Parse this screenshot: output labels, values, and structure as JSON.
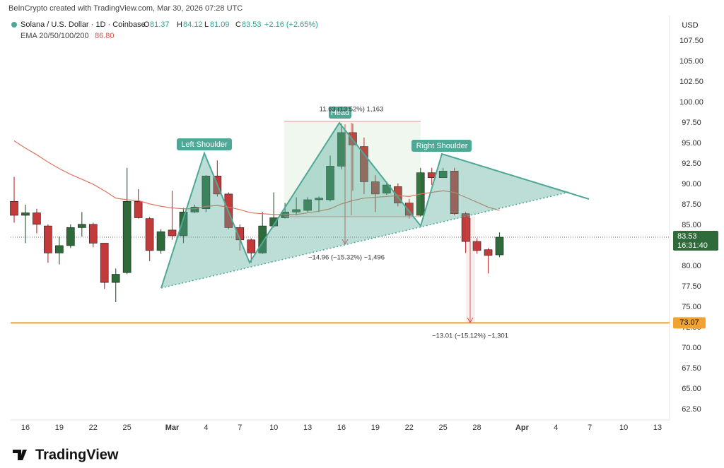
{
  "chart_data": {
    "type": "candlestick",
    "header": "BeInCrypto created with TradingView.com, Mar 30, 2026 07:28 UTC",
    "title": "Solana / U.S. Dollar · 1D · Coinbase",
    "ohlc_labels": [
      "O",
      "H",
      "L",
      "C"
    ],
    "change": "+2.16 (+2.65%)",
    "currency": "USD",
    "countdown": "16:31:40",
    "brand": "TradingView",
    "x": [
      "2026-02-15",
      "2026-02-16",
      "2026-02-17",
      "2026-02-18",
      "2026-02-19",
      "2026-02-20",
      "2026-02-21",
      "2026-02-22",
      "2026-02-23",
      "2026-02-24",
      "2026-02-25",
      "2026-02-26",
      "2026-02-27",
      "2026-02-28",
      "2026-03-01",
      "2026-03-02",
      "2026-03-03",
      "2026-03-04",
      "2026-03-05",
      "2026-03-06",
      "2026-03-07",
      "2026-03-08",
      "2026-03-09",
      "2026-03-10",
      "2026-03-11",
      "2026-03-12",
      "2026-03-13",
      "2026-03-14",
      "2026-03-15",
      "2026-03-16",
      "2026-03-17",
      "2026-03-18",
      "2026-03-19",
      "2026-03-20",
      "2026-03-21",
      "2026-03-22",
      "2026-03-23",
      "2026-03-24",
      "2026-03-25",
      "2026-03-26",
      "2026-03-27",
      "2026-03-28",
      "2026-03-29",
      "2026-03-30"
    ],
    "series": [
      {
        "up_color": "#2f6b3a",
        "down_color": "#c33a3a",
        "open": [
          87.9,
          86.2,
          86.5,
          84.9,
          81.6,
          82.5,
          84.7,
          85.1,
          82.8,
          78.0,
          79.2,
          87.9,
          85.8,
          81.9,
          84.4,
          83.7,
          86.6,
          87.0,
          91.0,
          88.8,
          84.7,
          83.2,
          81.6,
          84.9,
          85.9,
          86.6,
          86.8,
          88.1,
          88.1,
          92.2,
          96.3,
          94.6,
          90.3,
          88.9,
          89.7,
          87.7,
          86.2,
          91.4,
          90.8,
          91.6,
          86.4,
          83.0,
          82.0,
          81.37
        ],
        "high": [
          90.9,
          87.5,
          87.0,
          85.1,
          83.6,
          85.1,
          86.6,
          85.3,
          82.8,
          79.7,
          92.0,
          89.4,
          86.0,
          84.5,
          89.2,
          87.1,
          87.5,
          91.1,
          92.9,
          89.0,
          85.1,
          83.4,
          86.6,
          89.0,
          87.7,
          88.4,
          88.4,
          88.5,
          93.5,
          97.4,
          97.4,
          95.7,
          91.1,
          90.3,
          90.1,
          88.2,
          92.0,
          92.0,
          92.0,
          92.0,
          86.6,
          83.4,
          82.2,
          84.12
        ],
        "low": [
          85.3,
          82.8,
          84.0,
          80.4,
          80.2,
          82.2,
          83.6,
          82.3,
          77.2,
          75.6,
          79.0,
          85.8,
          80.6,
          81.5,
          83.2,
          82.8,
          86.5,
          86.6,
          88.5,
          84.5,
          81.9,
          80.4,
          81.5,
          84.7,
          85.8,
          86.2,
          86.6,
          86.6,
          87.9,
          91.8,
          89.2,
          88.8,
          86.6,
          88.7,
          87.3,
          85.8,
          86.0,
          89.9,
          90.8,
          86.2,
          81.6,
          81.5,
          79.1,
          81.09
        ],
        "close": [
          86.2,
          86.5,
          85.1,
          81.6,
          82.5,
          84.7,
          85.1,
          82.8,
          78.0,
          79.0,
          87.9,
          85.9,
          81.9,
          84.2,
          83.7,
          86.6,
          87.2,
          91.0,
          88.8,
          84.7,
          83.2,
          81.6,
          84.9,
          85.9,
          86.6,
          86.9,
          88.1,
          88.3,
          92.2,
          96.3,
          94.8,
          90.3,
          88.8,
          89.9,
          87.7,
          86.2,
          91.4,
          90.8,
          91.6,
          86.4,
          83.0,
          81.9,
          81.3,
          83.53
        ]
      },
      {
        "name": "EMA 20/50/100/200",
        "color": "#e0735e",
        "last_value_label": "86.80",
        "values": [
          95.3,
          94.4,
          93.6,
          92.7,
          91.9,
          91.2,
          90.6,
          90.0,
          89.2,
          88.3,
          88.1,
          88.0,
          87.6,
          87.3,
          87.1,
          87.0,
          87.0,
          87.3,
          87.4,
          87.2,
          86.9,
          86.5,
          86.4,
          86.3,
          86.3,
          86.3,
          86.5,
          86.7,
          87.0,
          87.6,
          88.0,
          88.3,
          88.4,
          88.5,
          88.6,
          88.5,
          88.8,
          89.0,
          89.2,
          89.0,
          88.4,
          87.8,
          87.2,
          86.8
        ]
      }
    ],
    "hline": 73.07,
    "hline_color": "#f0a330",
    "annotations": [
      "Left Shoulder",
      "Head",
      "Right Shoulder",
      "11.63 (13.52%) 1,163",
      "−14.96 (−15.32%) −1,496",
      "−13.01 (−15.12%) −1,301"
    ],
    "xlim": [
      "2026-02-15",
      "2026-04-13"
    ],
    "xticks": [
      {
        "value": "2026-02-16",
        "label": "16"
      },
      {
        "value": "2026-02-19",
        "label": "19"
      },
      {
        "value": "2026-02-22",
        "label": "22"
      },
      {
        "value": "2026-02-25",
        "label": "25"
      },
      {
        "value": "2026-03-01",
        "label": "Mar"
      },
      {
        "value": "2026-03-04",
        "label": "4"
      },
      {
        "value": "2026-03-07",
        "label": "7"
      },
      {
        "value": "2026-03-10",
        "label": "10"
      },
      {
        "value": "2026-03-13",
        "label": "13"
      },
      {
        "value": "2026-03-16",
        "label": "16"
      },
      {
        "value": "2026-03-19",
        "label": "19"
      },
      {
        "value": "2026-03-22",
        "label": "22"
      },
      {
        "value": "2026-03-25",
        "label": "25"
      },
      {
        "value": "2026-03-28",
        "label": "28"
      },
      {
        "value": "2026-04-01",
        "label": "Apr"
      },
      {
        "value": "2026-04-04",
        "label": "4"
      },
      {
        "value": "2026-04-07",
        "label": "7"
      },
      {
        "value": "2026-04-10",
        "label": "10"
      },
      {
        "value": "2026-04-13",
        "label": "13"
      }
    ],
    "ylim": [
      61.2,
      110.6
    ],
    "yticks": [
      {
        "value": 62.5,
        "label": "62.50"
      },
      {
        "value": 65,
        "label": "65.00"
      },
      {
        "value": 67.5,
        "label": "67.50"
      },
      {
        "value": 70,
        "label": "70.00"
      },
      {
        "value": 72.5,
        "label": "72.50"
      },
      {
        "value": 75,
        "label": "75.00"
      },
      {
        "value": 77.5,
        "label": "77.50"
      },
      {
        "value": 80,
        "label": "80.00"
      },
      {
        "value": 82.5,
        "label": "82.50"
      },
      {
        "value": 85,
        "label": "85.00"
      },
      {
        "value": 87.5,
        "label": "87.50"
      },
      {
        "value": 90,
        "label": "90.00"
      },
      {
        "value": 92.5,
        "label": "92.50"
      },
      {
        "value": 95,
        "label": "95.00"
      },
      {
        "value": 97.5,
        "label": "97.50"
      },
      {
        "value": 100,
        "label": "100.00"
      },
      {
        "value": 102.5,
        "label": "102.50"
      },
      {
        "value": 105,
        "label": "105.00"
      },
      {
        "value": 107.5,
        "label": "107.50"
      }
    ],
    "grid": false
  }
}
